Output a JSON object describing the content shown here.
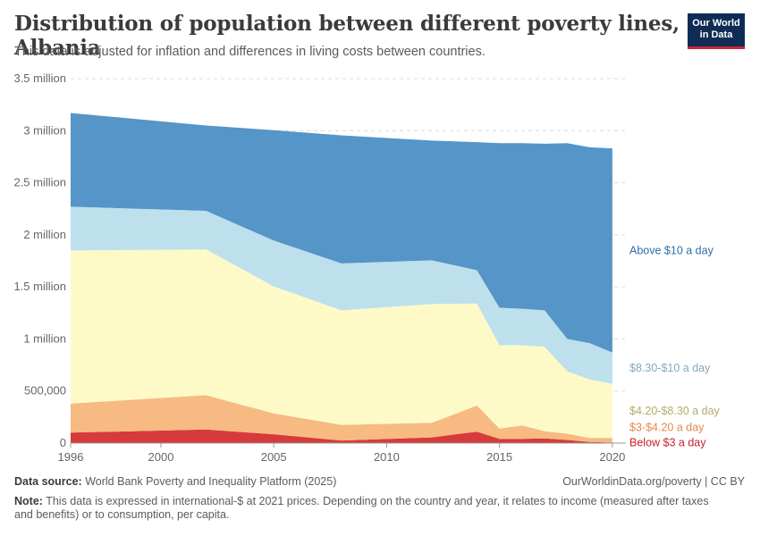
{
  "header": {
    "title": "Distribution of population between different poverty lines, Albania",
    "subtitle": "This data is adjusted for inflation and differences in living costs between countries.",
    "logo_line1": "Our World",
    "logo_line2": "in Data"
  },
  "footer": {
    "source_label": "Data source:",
    "source_text": "World Bank Poverty and Inequality Platform (2025)",
    "license": "OurWorldinData.org/poverty | CC BY",
    "note_label": "Note:",
    "note_text": "This data is expressed in international-$ at 2021 prices. Depending on the country and year, it relates to income (measured after taxes and benefits) or to consumption, per capita."
  },
  "chart_data": {
    "type": "area",
    "stacked": true,
    "x": [
      1996,
      2002,
      2005,
      2008,
      2012,
      2014,
      2015,
      2016,
      2017,
      2018,
      2019,
      2020
    ],
    "xticks": [
      1996,
      2000,
      2005,
      2010,
      2015,
      2020
    ],
    "yticks": [
      0,
      500000,
      1000000,
      1500000,
      2000000,
      2500000,
      3000000,
      3500000
    ],
    "ytick_labels": [
      "0",
      "500,000",
      "1 million",
      "1.5 million",
      "2 million",
      "2.5 million",
      "3 million",
      "3.5 million"
    ],
    "ylim": [
      0,
      3500000
    ],
    "xlim": [
      1996,
      2020.6
    ],
    "grid": "horizontal dashed",
    "legend": "labels at right end of series",
    "series": [
      {
        "name": "Below $3 a day",
        "color": "#d73a3a",
        "label_color": "#c8202a",
        "values": [
          100000,
          130000,
          85000,
          25000,
          55000,
          110000,
          40000,
          40000,
          45000,
          30000,
          10000,
          5000
        ]
      },
      {
        "name": "$3-$4.20 a day",
        "color": "#f6ba82",
        "label_color": "#e2894a",
        "values": [
          280000,
          330000,
          200000,
          150000,
          140000,
          250000,
          100000,
          130000,
          70000,
          60000,
          40000,
          45000
        ]
      },
      {
        "name": "$4.20-$8.30 a day",
        "color": "#fdfac8",
        "label_color": "#b2ac6a",
        "values": [
          1470000,
          1400000,
          1220000,
          1100000,
          1140000,
          980000,
          800000,
          770000,
          810000,
          600000,
          560000,
          520000
        ]
      },
      {
        "name": "$8.30-$10 a day",
        "color": "#bde0ec",
        "label_color": "#84aabb",
        "values": [
          420000,
          370000,
          440000,
          450000,
          420000,
          320000,
          360000,
          350000,
          350000,
          310000,
          350000,
          300000
        ]
      },
      {
        "name": "Above $10 a day",
        "color": "#5595c8",
        "label_color": "#2e6ea6",
        "values": [
          900000,
          820000,
          1060000,
          1230000,
          1150000,
          1230000,
          1580000,
          1590000,
          1600000,
          1880000,
          1880000,
          1960000
        ]
      }
    ]
  }
}
